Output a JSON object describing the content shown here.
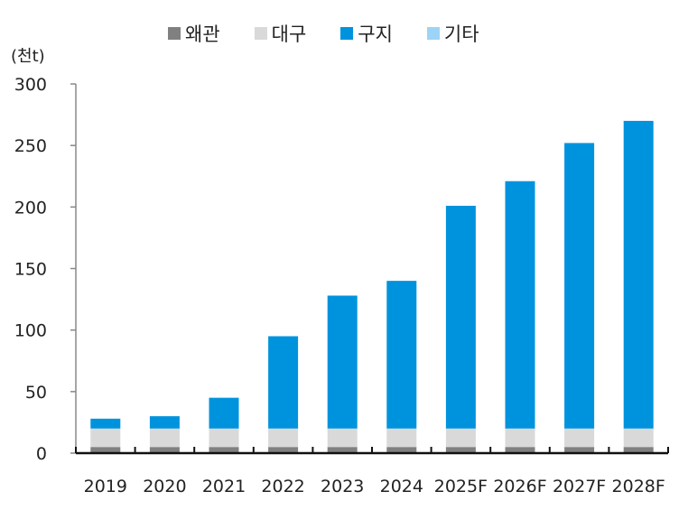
{
  "chart_data": {
    "type": "bar",
    "stacked": true,
    "title": "",
    "ylabel": "(천t)",
    "xlabel": "",
    "ylim": [
      0,
      300
    ],
    "yticks": [
      0,
      50,
      100,
      150,
      200,
      250,
      300
    ],
    "grid": false,
    "legend_position": "top",
    "categories": [
      "2019",
      "2020",
      "2021",
      "2022",
      "2023",
      "2024",
      "2025F",
      "2026F",
      "2027F",
      "2028F"
    ],
    "series": [
      {
        "name": "왜관",
        "color": "#808080",
        "values": [
          5,
          5,
          5,
          5,
          5,
          5,
          5,
          5,
          5,
          5
        ]
      },
      {
        "name": "대구",
        "color": "#d9d9d9",
        "values": [
          15,
          15,
          15,
          15,
          15,
          15,
          15,
          15,
          15,
          15
        ]
      },
      {
        "name": "구지",
        "color": "#0093dd",
        "values": [
          8,
          10,
          25,
          75,
          108,
          120,
          181,
          201,
          232,
          250
        ]
      },
      {
        "name": "기타",
        "color": "#9dd3f7",
        "values": [
          0,
          0,
          0,
          0,
          0,
          0,
          0,
          0,
          0,
          0
        ]
      }
    ]
  }
}
